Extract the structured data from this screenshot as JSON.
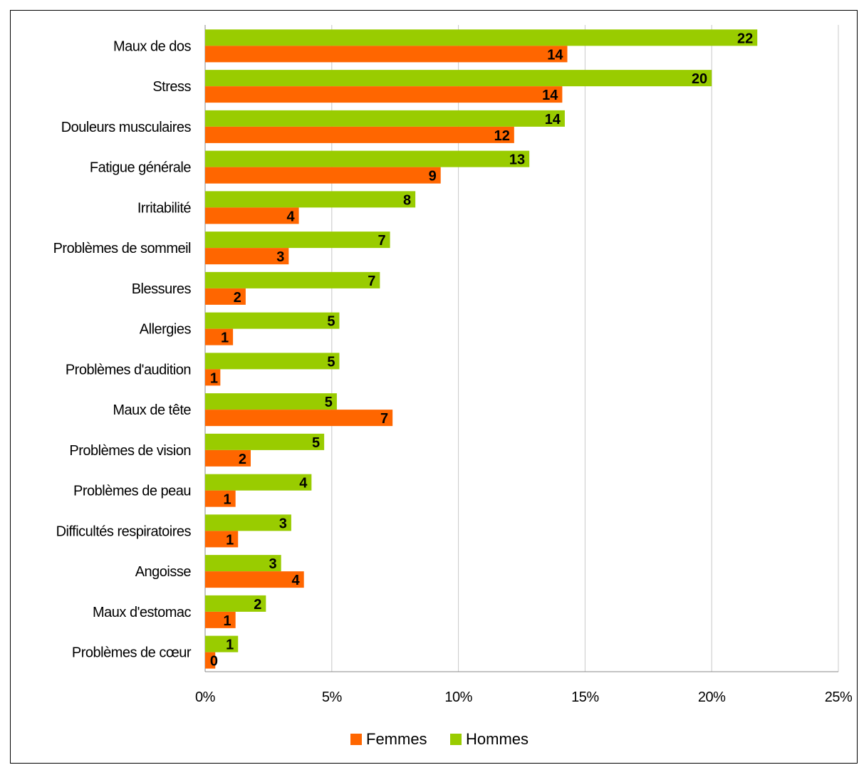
{
  "chart_data": {
    "type": "bar",
    "orientation": "horizontal",
    "categories": [
      "Maux de dos",
      "Stress",
      "Douleurs musculaires",
      "Fatigue générale",
      "Irritabilité",
      "Problèmes de sommeil",
      "Blessures",
      "Allergies",
      "Problèmes d'audition",
      "Maux de tête",
      "Problèmes de vision",
      "Problèmes de peau",
      "Difficultés respiratoires",
      "Angoisse",
      "Maux d'estomac",
      "Problèmes de cœur"
    ],
    "series": [
      {
        "name": "Hommes",
        "color": "#99cc00",
        "values": [
          21.8,
          20.0,
          14.2,
          12.8,
          8.3,
          7.3,
          6.9,
          5.3,
          5.3,
          5.2,
          4.7,
          4.2,
          3.4,
          3.0,
          2.4,
          1.3
        ],
        "labels": [
          "22",
          "20",
          "14",
          "13",
          "8",
          "7",
          "7",
          "5",
          "5",
          "5",
          "5",
          "4",
          "3",
          "3",
          "2",
          "1"
        ]
      },
      {
        "name": "Femmes",
        "color": "#ff6600",
        "values": [
          14.3,
          14.1,
          12.2,
          9.3,
          3.7,
          3.3,
          1.6,
          1.1,
          0.6,
          7.4,
          1.8,
          1.2,
          1.3,
          3.9,
          1.2,
          0.4
        ],
        "labels": [
          "14",
          "14",
          "12",
          "9",
          "4",
          "3",
          "2",
          "1",
          "1",
          "7",
          "2",
          "1",
          "1",
          "4",
          "1",
          "0"
        ]
      }
    ],
    "xlim": [
      0,
      25
    ],
    "xticks": [
      "0%",
      "5%",
      "10%",
      "15%",
      "20%",
      "25%"
    ],
    "grid": true,
    "legend": {
      "placement": "bottom",
      "entries": [
        {
          "name": "Femmes",
          "color": "#ff6600"
        },
        {
          "name": "Hommes",
          "color": "#99cc00"
        }
      ]
    },
    "title": "",
    "xlabel": "",
    "ylabel": ""
  }
}
